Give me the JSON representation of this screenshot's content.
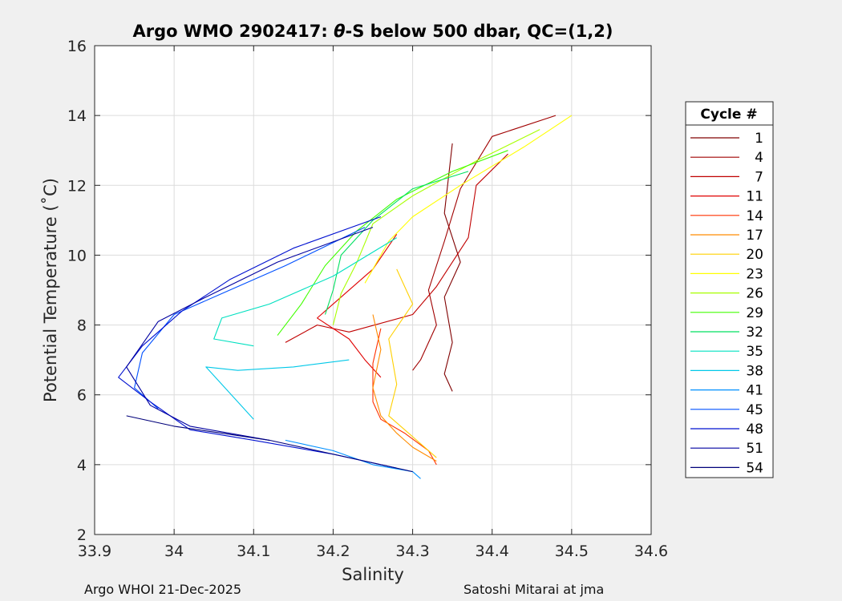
{
  "chart_data": {
    "type": "line",
    "title": "Argo WMO 2902417: θ-S below 500 dbar,  QC=(1,2)",
    "title_parts": {
      "prefix": "Argo WMO 2902417: ",
      "theta": "θ",
      "suffix": "-S below 500 dbar,  QC=(1,2)"
    },
    "xlabel": "Salinity",
    "ylabel": "Potential Temperature (˚C)",
    "xlim": [
      33.9,
      34.6
    ],
    "ylim": [
      2,
      16
    ],
    "xticks": [
      "33.9",
      "34",
      "34.1",
      "34.2",
      "34.3",
      "34.4",
      "34.5",
      "34.6"
    ],
    "yticks": [
      "2",
      "4",
      "6",
      "8",
      "10",
      "12",
      "14",
      "16"
    ],
    "grid": true,
    "legend_title": "Cycle #",
    "legend_placement": "right",
    "series": [
      {
        "name": "1",
        "color": "#800000",
        "points": [
          [
            34.35,
            13.2
          ],
          [
            34.34,
            11.2
          ],
          [
            34.36,
            9.8
          ],
          [
            34.34,
            8.8
          ],
          [
            34.35,
            7.5
          ],
          [
            34.34,
            6.6
          ],
          [
            34.35,
            6.1
          ]
        ]
      },
      {
        "name": "4",
        "color": "#a00000",
        "points": [
          [
            34.48,
            14.0
          ],
          [
            34.4,
            13.4
          ],
          [
            34.36,
            11.9
          ],
          [
            34.34,
            10.4
          ],
          [
            34.32,
            9.0
          ],
          [
            34.33,
            8.0
          ],
          [
            34.31,
            7.0
          ],
          [
            34.3,
            6.7
          ]
        ]
      },
      {
        "name": "7",
        "color": "#c00000",
        "points": [
          [
            34.42,
            12.9
          ],
          [
            34.38,
            12.0
          ],
          [
            34.37,
            10.5
          ],
          [
            34.33,
            9.1
          ],
          [
            34.3,
            8.3
          ],
          [
            34.22,
            7.8
          ],
          [
            34.18,
            8.0
          ],
          [
            34.14,
            7.5
          ]
        ]
      },
      {
        "name": "11",
        "color": "#e00000",
        "points": [
          [
            34.28,
            10.6
          ],
          [
            34.25,
            9.6
          ],
          [
            34.2,
            8.6
          ],
          [
            34.18,
            8.2
          ],
          [
            34.22,
            7.6
          ],
          [
            34.24,
            7.0
          ],
          [
            34.26,
            6.5
          ]
        ]
      },
      {
        "name": "14",
        "color": "#ff3000",
        "points": [
          [
            34.26,
            7.9
          ],
          [
            34.25,
            6.9
          ],
          [
            34.25,
            5.8
          ],
          [
            34.26,
            5.3
          ],
          [
            34.29,
            4.9
          ],
          [
            34.32,
            4.4
          ],
          [
            34.33,
            4.0
          ]
        ]
      },
      {
        "name": "17",
        "color": "#ff8c00",
        "points": [
          [
            34.25,
            8.3
          ],
          [
            34.26,
            7.3
          ],
          [
            34.25,
            6.2
          ],
          [
            34.26,
            5.4
          ],
          [
            34.28,
            4.9
          ],
          [
            34.3,
            4.5
          ],
          [
            34.33,
            4.1
          ]
        ]
      },
      {
        "name": "20",
        "color": "#ffd000",
        "points": [
          [
            34.28,
            9.6
          ],
          [
            34.3,
            8.6
          ],
          [
            34.27,
            7.6
          ],
          [
            34.28,
            6.3
          ],
          [
            34.27,
            5.4
          ],
          [
            34.3,
            4.8
          ],
          [
            34.33,
            4.2
          ]
        ]
      },
      {
        "name": "23",
        "color": "#ffff00",
        "points": [
          [
            34.5,
            14.0
          ],
          [
            34.44,
            13.1
          ],
          [
            34.36,
            12.0
          ],
          [
            34.3,
            11.1
          ],
          [
            34.27,
            10.4
          ],
          [
            34.24,
            9.2
          ]
        ]
      },
      {
        "name": "26",
        "color": "#a8ff00",
        "points": [
          [
            34.46,
            13.6
          ],
          [
            34.38,
            12.7
          ],
          [
            34.3,
            11.7
          ],
          [
            34.25,
            10.9
          ],
          [
            34.23,
            9.8
          ],
          [
            34.21,
            8.9
          ],
          [
            34.2,
            8.0
          ]
        ]
      },
      {
        "name": "29",
        "color": "#40ff00",
        "points": [
          [
            34.42,
            13.0
          ],
          [
            34.35,
            12.4
          ],
          [
            34.28,
            11.6
          ],
          [
            34.23,
            10.7
          ],
          [
            34.19,
            9.7
          ],
          [
            34.16,
            8.6
          ],
          [
            34.13,
            7.7
          ]
        ]
      },
      {
        "name": "32",
        "color": "#00e060",
        "points": [
          [
            34.37,
            12.4
          ],
          [
            34.3,
            11.9
          ],
          [
            34.25,
            11.0
          ],
          [
            34.21,
            10.0
          ],
          [
            34.2,
            9.0
          ],
          [
            34.19,
            8.3
          ]
        ]
      },
      {
        "name": "35",
        "color": "#00e0c0",
        "points": [
          [
            34.28,
            10.5
          ],
          [
            34.2,
            9.4
          ],
          [
            34.12,
            8.6
          ],
          [
            34.06,
            8.2
          ],
          [
            34.05,
            7.6
          ],
          [
            34.1,
            7.4
          ]
        ]
      },
      {
        "name": "38",
        "color": "#00c8e8",
        "points": [
          [
            34.22,
            7.0
          ],
          [
            34.15,
            6.8
          ],
          [
            34.08,
            6.7
          ],
          [
            34.04,
            6.8
          ],
          [
            34.1,
            5.3
          ]
        ]
      },
      {
        "name": "41",
        "color": "#0090ff",
        "points": [
          [
            34.14,
            4.7
          ],
          [
            34.2,
            4.4
          ],
          [
            34.25,
            4.0
          ],
          [
            34.3,
            3.8
          ],
          [
            34.31,
            3.6
          ]
        ]
      },
      {
        "name": "45",
        "color": "#0050ff",
        "points": [
          [
            34.24,
            10.8
          ],
          [
            34.14,
            9.7
          ],
          [
            34.06,
            8.9
          ],
          [
            34.0,
            8.3
          ],
          [
            33.96,
            7.2
          ],
          [
            33.95,
            6.2
          ],
          [
            33.98,
            5.6
          ]
        ]
      },
      {
        "name": "48",
        "color": "#0010d0",
        "points": [
          [
            34.26,
            11.1
          ],
          [
            34.15,
            10.2
          ],
          [
            34.07,
            9.3
          ],
          [
            34.01,
            8.4
          ],
          [
            33.96,
            7.4
          ],
          [
            33.93,
            6.5
          ],
          [
            33.97,
            5.8
          ],
          [
            34.02,
            5.0
          ],
          [
            34.1,
            4.7
          ],
          [
            34.2,
            4.3
          ],
          [
            34.28,
            3.9
          ]
        ]
      },
      {
        "name": "51",
        "color": "#0000a0",
        "points": [
          [
            34.25,
            10.8
          ],
          [
            34.13,
            9.8
          ],
          [
            34.04,
            8.8
          ],
          [
            33.98,
            8.1
          ],
          [
            33.94,
            6.8
          ],
          [
            33.97,
            5.7
          ],
          [
            34.02,
            5.1
          ],
          [
            34.12,
            4.7
          ]
        ]
      },
      {
        "name": "54",
        "color": "#00007a",
        "points": [
          [
            33.94,
            5.4
          ],
          [
            34.0,
            5.1
          ],
          [
            34.06,
            4.9
          ],
          [
            34.12,
            4.7
          ],
          [
            34.18,
            4.4
          ],
          [
            34.24,
            4.1
          ],
          [
            34.3,
            3.8
          ]
        ]
      }
    ]
  },
  "footer": {
    "left": "Argo WHOI 21-Dec-2025",
    "right": "Satoshi Mitarai at jma"
  },
  "colors": {
    "background": "#f0f0f0",
    "plot_background": "#ffffff",
    "grid": "#dcdcdc",
    "axis": "#262626"
  }
}
